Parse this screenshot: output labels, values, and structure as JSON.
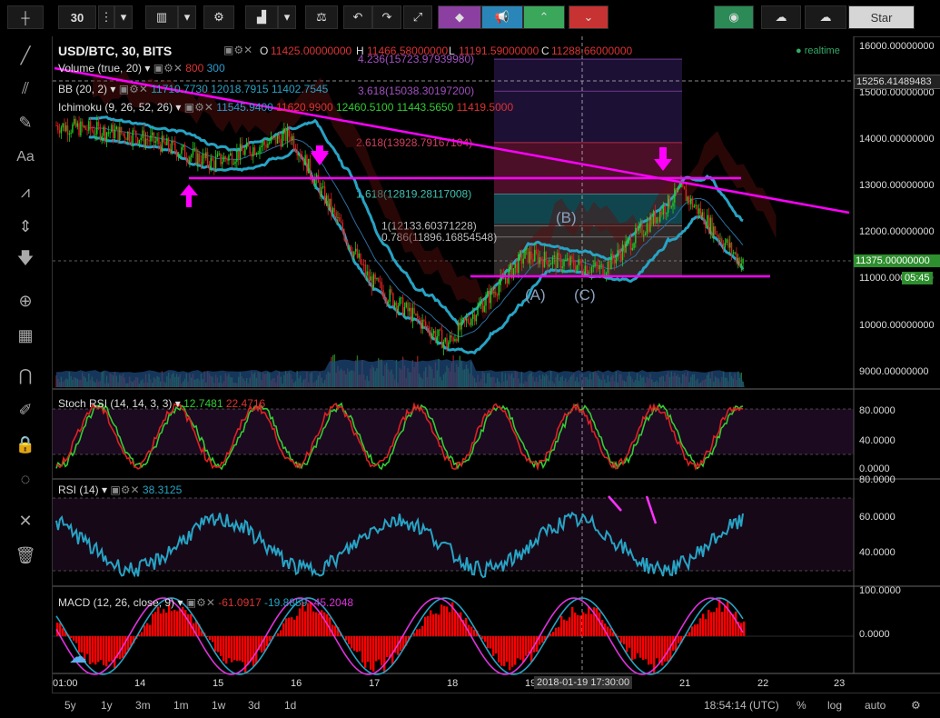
{
  "toolbar": {
    "interval": "30",
    "star_label": "Star"
  },
  "legend": {
    "symbol": "USD/BTC, 30, BITS",
    "o_label": "O",
    "o_value": "11425.00000000",
    "h_label": "H",
    "h_value": "11466.58000000",
    "l_label": "L",
    "l_value": "11191.59000000",
    "c_label": "C",
    "c_value": "11288.66000000",
    "realtime": "realtime",
    "volume": "Volume (true, 20)",
    "volume_v1": "800",
    "volume_v2": "300",
    "bb": "BB (20, 2)",
    "bb_v1": "11710.7730",
    "bb_v2": "12018.7915",
    "bb_v3": "11402.7545",
    "ichimoku": "Ichimoku (9, 26, 52, 26)",
    "ich_v1": "11545.9400",
    "ich_v2": "11620.9900",
    "ich_v3": "12460.5100",
    "ich_v4": "11443.5650",
    "ich_v5": "11419.5000"
  },
  "price_axis": {
    "ticks": [
      "16000.00000000",
      "15000.00000000",
      "14000.00000000",
      "13000.00000000",
      "12000.00000000",
      "11000.00000000",
      "10000.00000000",
      "9000.00000000"
    ],
    "crosshair_label": "15256.41489483",
    "last_label": "11375.00000000",
    "countdown": "05:45"
  },
  "fib_labels": [
    "4.236(15723.97939980)",
    "3.618(15038.30197200)",
    "2.618(13928.79167104)",
    "1.618(12819.28117008)",
    "1(12133.60371228)",
    "0.786(11896.16854548)"
  ],
  "wave_labels": [
    "(A)",
    "(B)",
    "(C)"
  ],
  "stoch": {
    "title": "Stoch RSI (14, 14, 3, 3)",
    "v1": "12.7481",
    "v2": "22.4716",
    "ticks": [
      "80.0000",
      "40.0000",
      "0.0000"
    ]
  },
  "rsi": {
    "title": "RSI (14)",
    "v1": "38.3125",
    "ticks": [
      "80.0000",
      "60.0000",
      "40.0000"
    ]
  },
  "macd": {
    "title": "MACD (12, 26, close, 9)",
    "v1": "-61.0917",
    "v2": "-19.8859",
    "v3": "-45.2048",
    "ticks": [
      "100.0000",
      "0.0000"
    ]
  },
  "time_axis": {
    "labels": [
      "01:00",
      "14",
      "15",
      "16",
      "17",
      "18",
      "19",
      "20",
      "21",
      "22",
      "23"
    ],
    "crosshair_label": "2018-01-19 17:30:00"
  },
  "bottom": {
    "ranges": [
      "5y",
      "1y",
      "3m",
      "1m",
      "1w",
      "3d",
      "1d"
    ],
    "clock": "18:54:14 (UTC)",
    "pct": "%",
    "log": "log",
    "auto": "auto"
  },
  "colors": {
    "candle_up": "#22cc22",
    "candle_down": "#dd2222",
    "bb": "#27a3c4",
    "trendline": "#ff00ff",
    "macd_hist": "#ff0000"
  },
  "chart_data": {
    "type": "line",
    "title": "USD/BTC, 30, BITS",
    "x": [
      "13",
      "14",
      "15",
      "16",
      "17",
      "18",
      "19",
      "20",
      "21",
      "21.8"
    ],
    "series": [
      {
        "name": "close",
        "values": [
          14300,
          14100,
          13500,
          14100,
          11000,
          9600,
          11500,
          11200,
          12900,
          11300
        ]
      }
    ],
    "ylim": [
      8700,
      16200
    ]
  }
}
